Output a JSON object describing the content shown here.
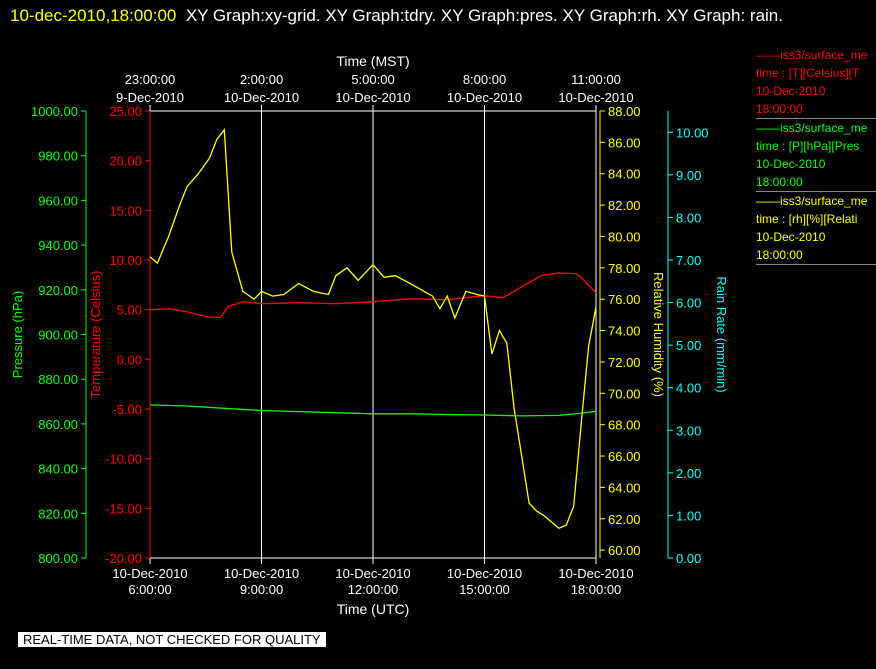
{
  "header": {
    "timestamp": "10-dec-2010,18:00:00",
    "titles": "XY Graph:xy-grid.  XY Graph:tdry.  XY Graph:pres.  XY Graph:rh.  XY Graph: rain."
  },
  "legend": [
    {
      "line1": "iss3/surface_me",
      "line2": "time : [T][Celsius][T",
      "line3": "10-Dec-2010",
      "line4": "18:00:00",
      "color": "#ff0000"
    },
    {
      "line1": "iss3/surface_me",
      "line2": "time : [P][hPa][Pres",
      "line3": "10-Dec-2010",
      "line4": "18:00:00",
      "color": "#00ff00"
    },
    {
      "line1": "iss3/surface_me",
      "line2": "time : [rh][%][Relati",
      "line3": "10-Dec-2010",
      "line4": "18:00:00",
      "color": "#ffff00"
    }
  ],
  "disclaimer": "REAL-TIME DATA, NOT CHECKED FOR QUALITY",
  "chart_data": {
    "type": "line",
    "grid": true,
    "x_range_hours_utc": [
      6,
      18
    ],
    "x_bottom": {
      "label": "Time (UTC)",
      "ticks": [
        {
          "value": 6,
          "date": "10-Dec-2010",
          "time": "6:00:00"
        },
        {
          "value": 9,
          "date": "10-Dec-2010",
          "time": "9:00:00"
        },
        {
          "value": 12,
          "date": "10-Dec-2010",
          "time": "12:00:00"
        },
        {
          "value": 15,
          "date": "10-Dec-2010",
          "time": "15:00:00"
        },
        {
          "value": 18,
          "date": "10-Dec-2010",
          "time": "18:00:00"
        }
      ]
    },
    "x_top": {
      "label": "Time (MST)",
      "ticks": [
        {
          "value": 6,
          "time": "23:00:00",
          "date": "9-Dec-2010"
        },
        {
          "value": 9,
          "time": "2:00:00",
          "date": "10-Dec-2010"
        },
        {
          "value": 12,
          "time": "5:00:00",
          "date": "10-Dec-2010"
        },
        {
          "value": 15,
          "time": "8:00:00",
          "date": "10-Dec-2010"
        },
        {
          "value": 18,
          "time": "11:00:00",
          "date": "10-Dec-2010"
        }
      ]
    },
    "y_axes": [
      {
        "id": "pres",
        "label": "Pressure (hPa)",
        "color": "#00ff00",
        "min": 800,
        "max": 1000,
        "ticks": [
          "800.00",
          "820.00",
          "840.00",
          "860.00",
          "880.00",
          "900.00",
          "920.00",
          "940.00",
          "960.00",
          "980.00",
          "1000.00"
        ]
      },
      {
        "id": "temp",
        "label": "Temperature (Celsius)",
        "color": "#ff0000",
        "min": -20,
        "max": 25,
        "ticks": [
          "-20.00",
          "-15.00",
          "-10.00",
          "-5.00",
          "0.00",
          "5.00",
          "10.00",
          "15.00",
          "20.00",
          "25.00"
        ]
      },
      {
        "id": "rh",
        "label": "Relative Humidity (%)",
        "color": "#ffff00",
        "min": 59.5,
        "max": 88,
        "ticks": [
          "60.00",
          "62.00",
          "64.00",
          "66.00",
          "68.00",
          "70.00",
          "72.00",
          "74.00",
          "76.00",
          "78.00",
          "80.00",
          "82.00",
          "84.00",
          "86.00",
          "88.00"
        ]
      },
      {
        "id": "rain",
        "label": "Rain Rate (mm/min)",
        "color": "#00ffff",
        "min": 0,
        "max": 10.5,
        "ticks": [
          "0.00",
          "1.00",
          "2.00",
          "3.00",
          "4.00",
          "5.00",
          "6.00",
          "7.00",
          "8.00",
          "9.00",
          "10.00"
        ]
      }
    ],
    "series": [
      {
        "axis": "temp",
        "color": "#ff0000",
        "x": [
          6.0,
          6.5,
          7.0,
          7.5,
          7.9,
          8.1,
          8.5,
          9.0,
          10.0,
          11.0,
          12.0,
          13.0,
          14.0,
          14.5,
          15.0,
          15.5,
          16.0,
          16.5,
          17.0,
          17.5,
          18.0
        ],
        "y": [
          5.0,
          5.1,
          4.8,
          4.3,
          4.2,
          5.3,
          5.8,
          5.6,
          5.7,
          5.6,
          5.8,
          6.1,
          6.0,
          6.2,
          6.4,
          6.2,
          7.3,
          8.4,
          8.7,
          8.6,
          6.7
        ]
      },
      {
        "axis": "pres",
        "color": "#00ff00",
        "x": [
          6.0,
          7.0,
          8.0,
          9.0,
          10.0,
          11.0,
          12.0,
          13.0,
          14.0,
          15.0,
          16.0,
          17.0,
          17.5,
          18.0
        ],
        "y": [
          868.5,
          868.0,
          867.0,
          866.0,
          865.5,
          865.0,
          864.5,
          864.5,
          864.2,
          864.0,
          863.6,
          863.8,
          864.6,
          865.6
        ],
        "_note": "approx"
      },
      {
        "axis": "rh",
        "color": "#ffff00",
        "x": [
          6.0,
          6.2,
          6.5,
          6.8,
          7.0,
          7.3,
          7.6,
          7.8,
          8.0,
          8.2,
          8.5,
          8.8,
          9.0,
          9.3,
          9.6,
          10.0,
          10.4,
          10.8,
          11.0,
          11.3,
          11.6,
          12.0,
          12.3,
          12.6,
          13.0,
          13.3,
          13.6,
          13.8,
          14.0,
          14.2,
          14.5,
          14.8,
          15.0,
          15.2,
          15.4,
          15.6,
          15.8,
          16.0,
          16.2,
          16.4,
          16.6,
          16.8,
          17.0,
          17.2,
          17.4,
          17.6,
          17.8,
          18.0
        ],
        "y": [
          78.7,
          78.3,
          80.0,
          82.0,
          83.2,
          84.0,
          85.0,
          86.2,
          86.8,
          79.0,
          76.5,
          76.0,
          76.5,
          76.2,
          76.3,
          77.0,
          76.5,
          76.3,
          77.5,
          78.0,
          77.2,
          78.2,
          77.4,
          77.5,
          77.0,
          76.6,
          76.2,
          75.4,
          76.2,
          74.8,
          76.5,
          76.3,
          76.2,
          72.5,
          74.0,
          73.2,
          69.0,
          66.0,
          63.0,
          62.5,
          62.2,
          61.8,
          61.4,
          61.6,
          62.8,
          68.0,
          73.0,
          75.5
        ]
      },
      {
        "axis": "rain",
        "color": "#00ffff",
        "x": [],
        "y": []
      }
    ]
  }
}
